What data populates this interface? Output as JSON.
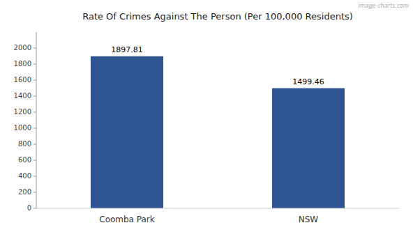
{
  "chart_data": {
    "type": "bar",
    "title": "Rate Of Crimes Against The Person (Per 100,000 Residents)",
    "categories": [
      "Coomba Park",
      "NSW"
    ],
    "values": [
      1897.81,
      1499.46
    ],
    "color": "#2e5591",
    "ylim": [
      0,
      2200
    ],
    "yticks": [
      0,
      200,
      400,
      600,
      800,
      1000,
      1200,
      1400,
      1600,
      1800,
      2000
    ],
    "grid": false,
    "data_labels": true,
    "annotations": [
      "image-charts.com"
    ]
  }
}
